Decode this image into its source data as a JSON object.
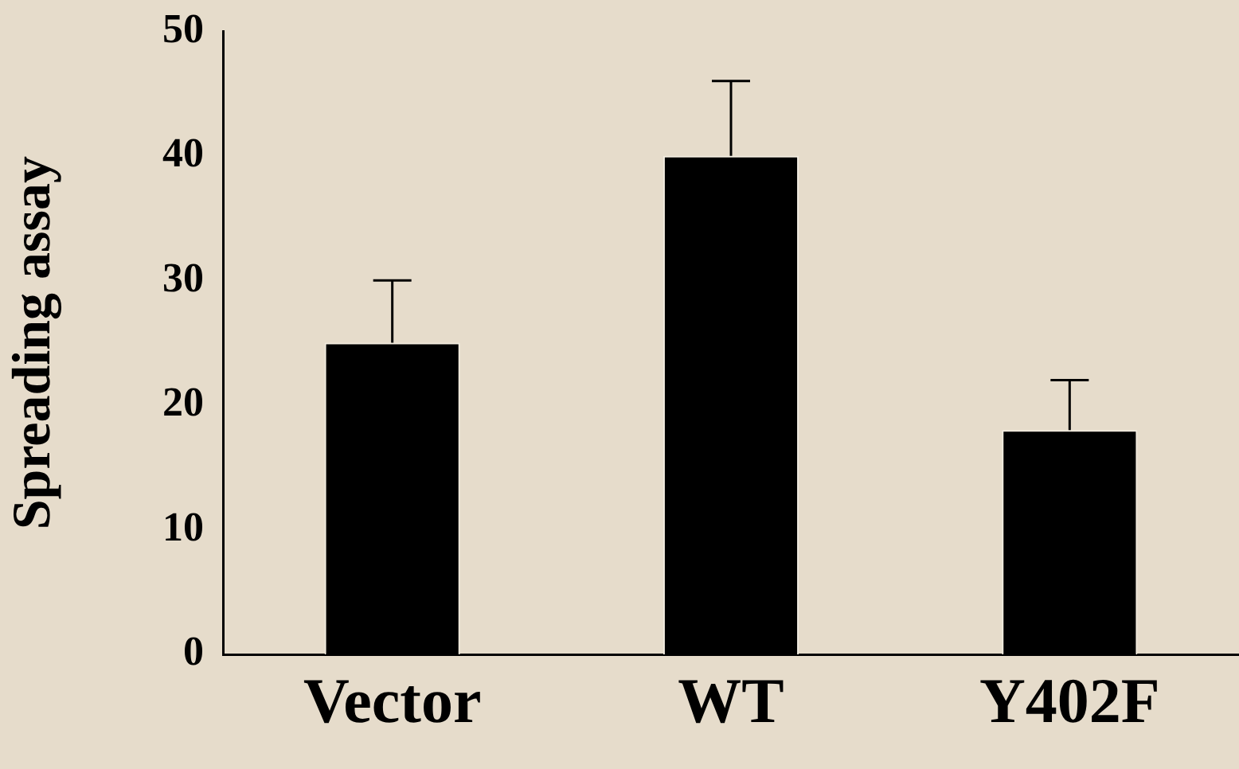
{
  "chart_data": {
    "type": "bar",
    "ylabel": "Spreading assay",
    "categories": [
      "Vector",
      "WT",
      "Y402F"
    ],
    "values": [
      25,
      40,
      18
    ],
    "errors": [
      [
        25,
        30
      ],
      [
        40,
        46
      ],
      [
        18,
        22
      ]
    ],
    "color": "#000000",
    "ylim": [
      0,
      50
    ],
    "yticks": [
      0,
      10,
      20,
      30,
      40,
      50
    ],
    "grid": false,
    "legend": false
  }
}
